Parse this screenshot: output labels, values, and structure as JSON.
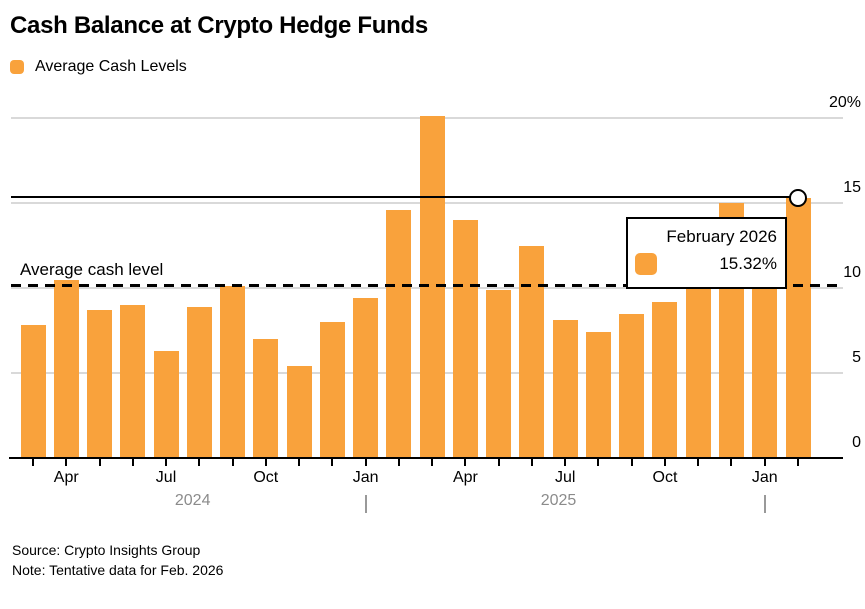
{
  "title": "Cash Balance at Crypto Hedge Funds",
  "legend": {
    "label": "Average Cash Levels"
  },
  "colors": {
    "bar": "#F9A23C",
    "gridline": "#D9D9D9",
    "axis": "#000000",
    "year_label": "#8B8B8B",
    "year_tick": "#999999",
    "reference_line": "#000000",
    "average_line": "#000000"
  },
  "chart_data": {
    "type": "bar",
    "series_name": "Average Cash Levels",
    "unit": "%",
    "categories": [
      "Mar 2024",
      "Apr 2024",
      "May 2024",
      "Jun 2024",
      "Jul 2024",
      "Aug 2024",
      "Sep 2024",
      "Oct 2024",
      "Nov 2024",
      "Dec 2024",
      "Jan 2025",
      "Feb 2025",
      "Mar 2025",
      "Apr 2025",
      "May 2025",
      "Jun 2025",
      "Jul 2025",
      "Aug 2025",
      "Sep 2025",
      "Oct 2025",
      "Nov 2025",
      "Dec 2025",
      "Jan 2026",
      "Feb 2026"
    ],
    "values": [
      7.8,
      10.5,
      8.7,
      9.0,
      6.3,
      8.9,
      10.1,
      7.0,
      5.4,
      8.0,
      9.4,
      14.6,
      20.1,
      14.0,
      9.9,
      12.5,
      8.1,
      7.4,
      8.5,
      9.2,
      12.0,
      15.0,
      13.9,
      15.32
    ],
    "ylim": [
      0,
      20
    ],
    "yticks": [
      {
        "value": 0,
        "label": "0"
      },
      {
        "value": 5,
        "label": "5"
      },
      {
        "value": 10,
        "label": "10"
      },
      {
        "value": 15,
        "label": "15"
      },
      {
        "value": 20,
        "label": "20%"
      }
    ],
    "x_tick_labels": [
      {
        "index": 1,
        "label": "Apr"
      },
      {
        "index": 4,
        "label": "Jul"
      },
      {
        "index": 7,
        "label": "Oct"
      },
      {
        "index": 10,
        "label": "Jan"
      },
      {
        "index": 13,
        "label": "Apr"
      },
      {
        "index": 16,
        "label": "Jul"
      },
      {
        "index": 19,
        "label": "Oct"
      },
      {
        "index": 22,
        "label": "Jan"
      }
    ],
    "year_labels": [
      {
        "label": "2024",
        "from_index": 0,
        "to_index": 9
      },
      {
        "label": "2025",
        "from_index": 10,
        "to_index": 21
      }
    ],
    "year_start_tick_indices": [
      10,
      22
    ],
    "average_line": {
      "label": "Average cash level",
      "value": 10.2
    },
    "reference_line": {
      "value": 15.35
    },
    "highlight": {
      "category": "February 2026",
      "index": 23,
      "value": 15.32,
      "marker": "open-circle"
    },
    "grid": true,
    "legend_position": "top-left",
    "y_axis_side": "right"
  },
  "tooltip": {
    "title": "February 2026",
    "value_label": "15.32%"
  },
  "footer": {
    "source": "Source: Crypto Insights Group",
    "note": "Note: Tentative data for Feb. 2026"
  }
}
